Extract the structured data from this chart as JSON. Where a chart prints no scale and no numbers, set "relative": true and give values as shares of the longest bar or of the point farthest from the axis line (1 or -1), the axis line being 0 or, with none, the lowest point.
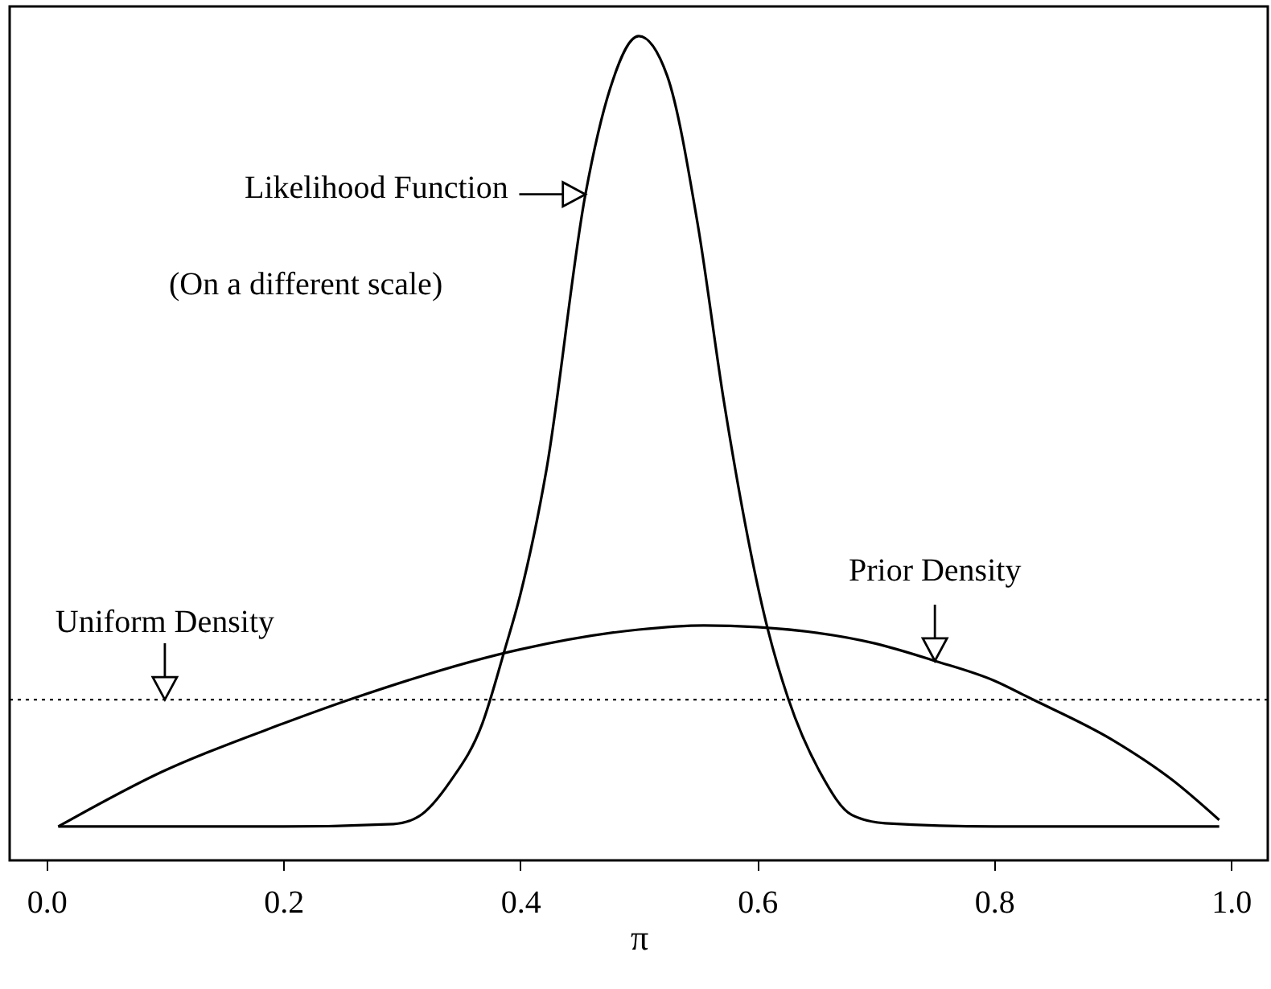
{
  "chart_data": {
    "type": "line",
    "relative": true,
    "xlabel": "π",
    "xlim": [
      -0.031,
      1.031
    ],
    "xticks": [
      {
        "value": 0,
        "label": "0.0"
      },
      {
        "value": 0.2,
        "label": "0.2"
      },
      {
        "value": 0.4,
        "label": "0.4"
      },
      {
        "value": 0.6,
        "label": "0.6"
      },
      {
        "value": 0.8,
        "label": "0.8"
      },
      {
        "value": 1,
        "label": "1.0"
      }
    ],
    "tick_labels": "x",
    "series": [
      {
        "color": "#000000",
        "x": [
          0.01,
          0.1,
          0.2,
          0.293,
          0.314,
          0.341,
          0.368,
          0.387,
          0.4,
          0.422,
          0.455,
          0.476,
          0.5,
          0.524,
          0.55,
          0.572,
          0.609,
          0.626,
          0.653,
          0.68,
          0.708,
          0.8,
          0.9,
          0.99
        ],
        "values": [
          0.041,
          0.041,
          0.041,
          0.044,
          0.053,
          0.096,
          0.166,
          0.256,
          0.322,
          0.473,
          0.808,
          0.937,
          1,
          0.952,
          0.77,
          0.556,
          0.28,
          0.197,
          0.107,
          0.055,
          0.045,
          0.041,
          0.041,
          0.041
        ]
      },
      {
        "color": "#000000",
        "x": [
          0.01,
          0.097,
          0.2,
          0.26,
          0.4,
          0.5,
          0.555,
          0.6,
          0.7,
          0.75,
          0.8,
          0.83,
          0.9,
          0.95,
          0.99
        ],
        "values": [
          0.041,
          0.107,
          0.166,
          0.197,
          0.256,
          0.28,
          0.285,
          0.283,
          0.263,
          0.242,
          0.218,
          0.197,
          0.146,
          0.098,
          0.049
        ]
      }
    ],
    "ref_lines": [
      {
        "axis": "y",
        "value": 0.195,
        "color": "#000000",
        "line_style": "dotted"
      }
    ],
    "annotations": [
      {
        "text": "Likelihood Function",
        "x": 0.455,
        "y": 0.808
      },
      "(On a different scale)",
      {
        "text": "Uniform Density",
        "x": 0.1,
        "y": 0.195
      },
      {
        "text": "Prior Density",
        "x": 0.75,
        "y": 0.242
      }
    ]
  }
}
